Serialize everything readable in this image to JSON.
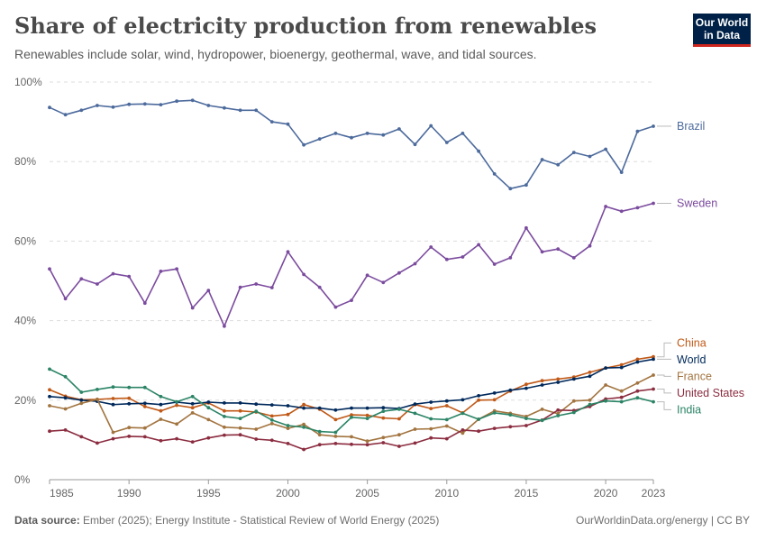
{
  "header": {
    "title": "Share of electricity production from renewables",
    "subtitle": "Renewables include solar, wind, hydropower, bioenergy, geothermal, wave, and tidal sources.",
    "logo_line1": "Our World",
    "logo_line2": "in Data",
    "logo_bg_color": "#002147",
    "logo_accent_color": "#ce261e"
  },
  "footer": {
    "source_label": "Data source:",
    "source_text": "Ember (2025); Energy Institute - Statistical Review of World Energy (2025)",
    "credit": "OurWorldinData.org/energy | CC BY"
  },
  "chart_data": {
    "type": "line",
    "title": "Share of electricity production from renewables",
    "subtitle": "Renewables include solar, wind, hydropower, bioenergy, geothermal, wave, and tidal sources.",
    "x": [
      1985,
      1986,
      1987,
      1988,
      1989,
      1990,
      1991,
      1992,
      1993,
      1994,
      1995,
      1996,
      1997,
      1998,
      1999,
      2000,
      2001,
      2002,
      2003,
      2004,
      2005,
      2006,
      2007,
      2008,
      2009,
      2010,
      2011,
      2012,
      2013,
      2014,
      2015,
      2016,
      2017,
      2018,
      2019,
      2020,
      2021,
      2022,
      2023
    ],
    "x_ticks": [
      1985,
      1990,
      1995,
      2000,
      2005,
      2010,
      2015,
      2020,
      2023
    ],
    "y_ticks": [
      0,
      20,
      40,
      60,
      80,
      100
    ],
    "y_tick_labels": [
      "0%",
      "20%",
      "40%",
      "60%",
      "80%",
      "100%"
    ],
    "ylim": [
      0,
      100
    ],
    "xlim": [
      1985,
      2023
    ],
    "grid": "horizontal dashed",
    "legend": "line-end labels on right",
    "series": [
      {
        "name": "Brazil",
        "color": "#4c6a9c",
        "values": [
          93.6,
          91.8,
          92.9,
          94.1,
          93.7,
          94.4,
          94.5,
          94.3,
          95.2,
          95.4,
          94.1,
          93.5,
          92.9,
          92.9,
          90.0,
          89.4,
          84.2,
          85.7,
          87.1,
          86.0,
          87.1,
          86.7,
          88.2,
          84.3,
          89.0,
          84.8,
          87.1,
          82.6,
          76.9,
          73.2,
          74.1,
          80.5,
          79.2,
          82.3,
          81.3,
          83.1,
          77.3,
          87.6,
          88.9
        ]
      },
      {
        "name": "Sweden",
        "color": "#7b4b9e",
        "values": [
          53.0,
          45.5,
          50.5,
          49.2,
          51.8,
          51.1,
          44.4,
          52.4,
          53.0,
          43.2,
          47.6,
          38.6,
          48.4,
          49.2,
          48.3,
          57.3,
          51.6,
          48.4,
          43.4,
          45.1,
          51.4,
          49.6,
          52.0,
          54.3,
          58.5,
          55.4,
          56.0,
          59.1,
          54.2,
          55.8,
          63.3,
          57.3,
          58.0,
          55.8,
          58.8,
          68.7,
          67.5,
          68.4,
          69.5
        ]
      },
      {
        "name": "China",
        "color": "#c05917",
        "values": [
          22.6,
          21.0,
          20.1,
          20.2,
          20.4,
          20.5,
          18.4,
          17.3,
          18.7,
          18.1,
          19.3,
          17.3,
          17.3,
          17.0,
          16.0,
          16.4,
          18.9,
          17.7,
          15.1,
          16.3,
          16.2,
          15.5,
          15.3,
          18.9,
          17.9,
          18.6,
          16.8,
          20.0,
          20.1,
          22.3,
          24.0,
          24.9,
          25.3,
          25.8,
          27.0,
          28.1,
          28.9,
          30.3,
          30.9
        ]
      },
      {
        "name": "World",
        "color": "#00295b",
        "values": [
          20.9,
          20.6,
          20.0,
          19.7,
          18.9,
          19.1,
          19.2,
          18.9,
          19.5,
          19.1,
          19.5,
          19.3,
          19.3,
          19.0,
          18.8,
          18.6,
          18.0,
          18.0,
          17.5,
          18.0,
          18.0,
          18.1,
          17.9,
          19.0,
          19.5,
          19.8,
          20.1,
          21.1,
          21.8,
          22.5,
          23.0,
          23.8,
          24.5,
          25.3,
          26.0,
          28.1,
          28.2,
          29.6,
          30.3
        ]
      },
      {
        "name": "France",
        "color": "#a2743f",
        "values": [
          18.6,
          17.8,
          19.2,
          20.2,
          11.9,
          13.1,
          13.0,
          15.2,
          14.0,
          16.8,
          15.1,
          13.2,
          13.0,
          12.7,
          14.1,
          12.9,
          13.9,
          11.3,
          10.9,
          10.8,
          9.7,
          10.6,
          11.3,
          12.7,
          12.8,
          13.5,
          11.7,
          15.2,
          17.3,
          16.7,
          15.9,
          17.7,
          16.6,
          19.8,
          20.0,
          23.8,
          22.3,
          24.3,
          26.3
        ]
      },
      {
        "name": "United States",
        "color": "#8b2c3f",
        "values": [
          12.2,
          12.5,
          10.8,
          9.2,
          10.3,
          10.9,
          10.8,
          9.8,
          10.3,
          9.5,
          10.5,
          11.2,
          11.3,
          10.2,
          9.9,
          9.1,
          7.6,
          8.8,
          9.1,
          8.9,
          8.8,
          9.3,
          8.4,
          9.2,
          10.5,
          10.3,
          12.5,
          12.2,
          12.9,
          13.3,
          13.6,
          15.0,
          17.5,
          17.4,
          18.4,
          20.3,
          20.7,
          22.3,
          22.8
        ]
      },
      {
        "name": "India",
        "color": "#2b8465",
        "values": [
          27.8,
          25.9,
          22.0,
          22.7,
          23.3,
          23.2,
          23.2,
          20.9,
          19.6,
          20.9,
          18.1,
          15.9,
          15.4,
          17.2,
          15.0,
          13.6,
          13.2,
          12.1,
          11.9,
          15.7,
          15.4,
          17.2,
          17.7,
          16.7,
          15.3,
          15.1,
          16.7,
          15.2,
          16.8,
          16.3,
          15.4,
          14.9,
          16.1,
          16.9,
          18.9,
          19.8,
          19.6,
          20.6,
          19.6
        ]
      }
    ]
  }
}
